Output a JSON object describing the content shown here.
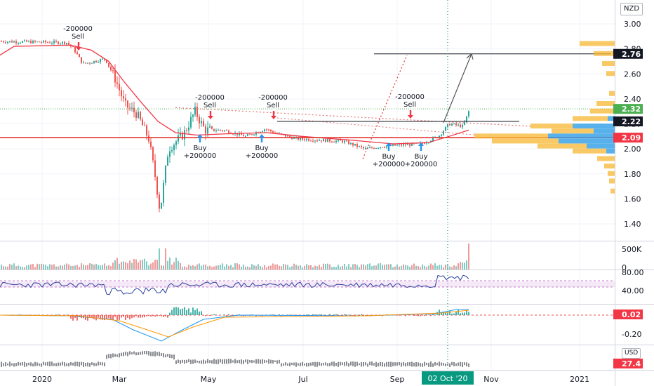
{
  "currency": "NZD",
  "secondary_currency": "USD",
  "colors": {
    "up": "#26a69a",
    "down": "#ef5350",
    "ma": "#f23645",
    "rsi": "#2a3f9c",
    "macd": "#2196f3",
    "signal": "#ff9800",
    "crosshair": "#089981",
    "tag_black": "#131722",
    "tag_green": "#4caf50",
    "tag_red": "#f23645",
    "vp_up": "#2e9de6",
    "vp_down": "#f7b733"
  },
  "chart_data": {
    "type": "candlestick",
    "price_axis": {
      "ticks": [
        "3.00",
        "2.80",
        "2.60",
        "2.40",
        "2.20",
        "2.00",
        "1.80",
        "1.60",
        "1.40"
      ],
      "ylim": [
        1.3,
        3.1
      ]
    },
    "time_axis": {
      "labels": [
        "2020",
        "Mar",
        "May",
        "Jul",
        "Sep",
        "Nov",
        "2021"
      ],
      "crosshair_label": "02 Oct '20"
    },
    "price_tags": [
      {
        "value": "2.76",
        "style": "black"
      },
      {
        "value": "2.32",
        "style": "green"
      },
      {
        "value": "2.22",
        "style": "black"
      },
      {
        "value": "2.09",
        "style": "red"
      }
    ],
    "trades": [
      {
        "type": "Sell",
        "label": "-200000",
        "text": "Sell",
        "price": 2.81,
        "date": "Jan"
      },
      {
        "type": "Sell",
        "label": "-200000",
        "text": "Sell",
        "price": 2.33,
        "date": "Apr"
      },
      {
        "type": "Buy",
        "label": "Buy",
        "text": "+200000",
        "price": 2.05,
        "date": "Apr"
      },
      {
        "type": "Sell",
        "label": "-200000",
        "text": "Sell",
        "price": 2.33,
        "date": "Jun"
      },
      {
        "type": "Buy",
        "label": "Buy",
        "text": "+200000",
        "price": 2.05,
        "date": "Jun"
      },
      {
        "type": "Sell",
        "label": "-200000",
        "text": "Sell",
        "price": 2.27,
        "date": "Sep"
      },
      {
        "type": "Buy",
        "label": "Buy",
        "text": "+200000",
        "price": 2.02,
        "date": "Sep"
      },
      {
        "type": "Buy",
        "label": "Buy",
        "text": "+200000",
        "price": 2.02,
        "date": "Sep"
      }
    ],
    "volume_panel": {
      "ticks": [
        "500K",
        "0"
      ]
    },
    "rsi_panel": {
      "ticks": [
        "80.00",
        "40.00"
      ]
    },
    "macd_panel": {
      "ticks": [
        "0.02",
        "-0.20"
      ],
      "tag": "0.02"
    },
    "fx_panel": {
      "tag": "27.4"
    }
  }
}
